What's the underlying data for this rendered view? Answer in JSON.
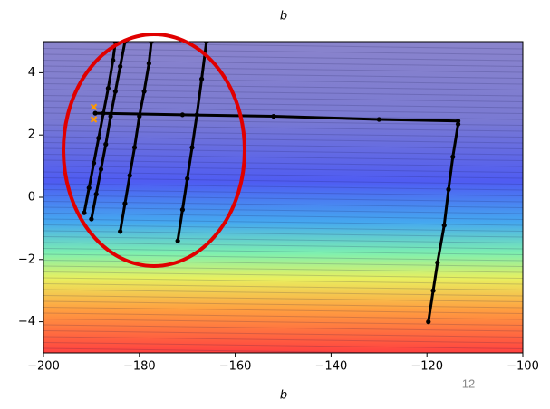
{
  "top_label": "b",
  "page_number": "12",
  "chart_data": {
    "type": "line",
    "x_label": "b",
    "xlim": [
      -200,
      -100
    ],
    "ylim": [
      -5,
      5
    ],
    "xticks": [
      {
        "value": -200,
        "label": "−200"
      },
      {
        "value": -180,
        "label": "−180"
      },
      {
        "value": -160,
        "label": "−160"
      },
      {
        "value": -140,
        "label": "−140"
      },
      {
        "value": -120,
        "label": "−120"
      },
      {
        "value": -100,
        "label": "−100"
      }
    ],
    "yticks": [
      {
        "value": -4,
        "label": "−4"
      },
      {
        "value": -2,
        "label": "−2"
      },
      0,
      2,
      4
    ],
    "series": [
      {
        "color": "#000000",
        "x": [
          -119.7,
          -118.7,
          -117.8,
          -116.4,
          -115.5,
          -114.6,
          -113.5,
          -113.5,
          -130,
          -152,
          -171,
          -189.2
        ],
        "values": [
          -4,
          -3,
          -2.1,
          -0.9,
          0.25,
          1.3,
          2.35,
          2.45,
          2.5,
          2.6,
          2.65,
          2.7
        ]
      },
      {
        "color": "#000000",
        "x": [
          -172,
          -171,
          -170,
          -169,
          -168,
          -167,
          -166
        ],
        "values": [
          -1.4,
          -0.4,
          0.6,
          1.6,
          2.65,
          3.8,
          5
        ]
      },
      {
        "color": "#000000",
        "x": [
          -184,
          -183,
          -182,
          -181,
          -180,
          -179,
          -178,
          -177.5
        ],
        "values": [
          -1.1,
          -0.2,
          0.7,
          1.6,
          2.6,
          3.4,
          4.3,
          5
        ]
      },
      {
        "color": "#000000",
        "x": [
          -190,
          -189,
          -188,
          -187,
          -186,
          -185,
          -184,
          -183
        ],
        "values": [
          -0.7,
          0.1,
          0.9,
          1.7,
          2.6,
          3.4,
          4.2,
          5
        ]
      },
      {
        "color": "#000000",
        "x": [
          -191.5,
          -190.5,
          -189.5,
          -188.5,
          -187.5,
          -186.5,
          -185.5,
          -185
        ],
        "values": [
          -0.5,
          0.3,
          1.1,
          1.9,
          2.7,
          3.5,
          4.4,
          5
        ]
      },
      {
        "color": "#ff9900",
        "x": [
          -189.5,
          -189.5
        ],
        "values": [
          2.9,
          2.5
        ]
      }
    ]
  }
}
